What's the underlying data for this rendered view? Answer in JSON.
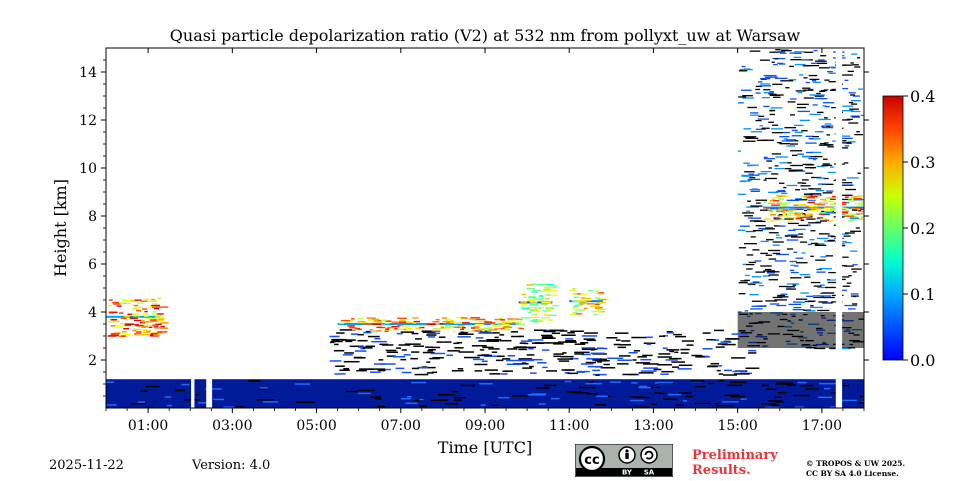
{
  "chart_data": {
    "type": "heatmap",
    "title": "Quasi particle depolarization ratio (V2) at 532 nm from pollyxt_uw at Warsaw",
    "xlabel": "Time [UTC]",
    "ylabel": "Height [km]",
    "x_ticks": [
      "01:00",
      "03:00",
      "05:00",
      "07:00",
      "09:00",
      "11:00",
      "13:00",
      "15:00",
      "17:00"
    ],
    "x_tick_hours": [
      1,
      3,
      5,
      7,
      9,
      11,
      13,
      15,
      17
    ],
    "xlim_hours": [
      0,
      18
    ],
    "y_ticks": [
      "2",
      "4",
      "6",
      "8",
      "10",
      "12",
      "14"
    ],
    "y_tick_values": [
      2,
      4,
      6,
      8,
      10,
      12,
      14
    ],
    "ylim_km": [
      0,
      15
    ],
    "colorbar": {
      "ticks": [
        "0.0",
        "0.1",
        "0.2",
        "0.3",
        "0.4"
      ],
      "tick_values": [
        0.0,
        0.1,
        0.2,
        0.3,
        0.4
      ],
      "range": [
        0.0,
        0.4
      ],
      "colormap": "jet"
    },
    "features": [
      {
        "name": "boundary-layer",
        "t_start": 0.0,
        "t_end": 18.0,
        "h_bottom": 0.0,
        "h_top": 1.2,
        "value": 0.02
      },
      {
        "name": "early-aerosol-layer",
        "t_start": 0.0,
        "t_end": 1.3,
        "h_bottom": 3.0,
        "h_top": 4.6,
        "value": 0.38
      },
      {
        "name": "elevated-aerosol-layer",
        "t_start": 5.5,
        "t_end": 9.8,
        "h_bottom": 3.2,
        "h_top": 3.8,
        "value": 0.37
      },
      {
        "name": "cloud-feature-1",
        "t_start": 9.8,
        "t_end": 10.6,
        "h_bottom": 3.6,
        "h_top": 5.2,
        "value": 0.28
      },
      {
        "name": "cloud-feature-2",
        "t_start": 11.0,
        "t_end": 11.8,
        "h_bottom": 3.9,
        "h_top": 5.0,
        "value": 0.33
      },
      {
        "name": "cirrus-layer",
        "t_start": 15.6,
        "t_end": 18.0,
        "h_bottom": 7.8,
        "h_top": 8.9,
        "value": 0.35
      },
      {
        "name": "free-troposphere-noise",
        "t_start": 15.0,
        "t_end": 18.0,
        "h_bottom": 2.5,
        "h_top": 15.0,
        "value": 0.02
      }
    ],
    "gaps_hours": [
      [
        2.02,
        2.1
      ],
      [
        2.38,
        2.52
      ],
      [
        17.33,
        17.48
      ]
    ]
  },
  "footer": {
    "date": "2025-11-22",
    "version": "Version: 4.0",
    "preliminary_line1": "Preliminary",
    "preliminary_line2": "Results.",
    "copyright_line1": "© TROPOS & UW 2025.",
    "copyright_line2": "CC BY SA 4.0 License.",
    "cc_label_by": "BY",
    "cc_label_sa": "SA",
    "cc_label_cc": "cc"
  },
  "colors": {
    "preliminary": "#e8353b",
    "background": "#ffffff"
  }
}
